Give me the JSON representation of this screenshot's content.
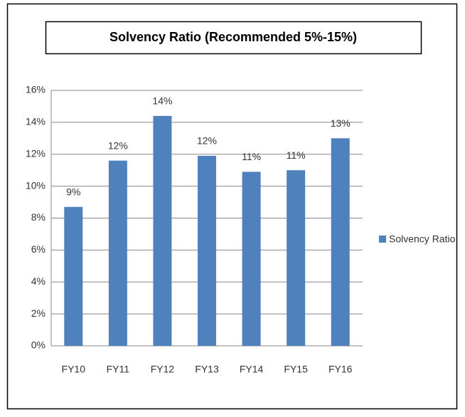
{
  "chart_data": {
    "type": "bar",
    "title": "Solvency Ratio (Recommended 5%-15%)",
    "categories": [
      "FY10",
      "FY11",
      "FY12",
      "FY13",
      "FY14",
      "FY15",
      "FY16"
    ],
    "series": [
      {
        "name": "Solvency Ratio",
        "color": "#4f81bd",
        "values": [
          8.7,
          11.6,
          14.4,
          11.9,
          10.9,
          11.0,
          13.0
        ],
        "value_labels": [
          "9%",
          "12%",
          "14%",
          "12%",
          "11%",
          "11%",
          "13%"
        ]
      }
    ],
    "ylim": [
      0,
      16
    ],
    "yticks": [
      {
        "value": 0,
        "label": "0%"
      },
      {
        "value": 2,
        "label": "2%"
      },
      {
        "value": 4,
        "label": "4%"
      },
      {
        "value": 6,
        "label": "6%"
      },
      {
        "value": 8,
        "label": "8%"
      },
      {
        "value": 10,
        "label": "10%"
      },
      {
        "value": 12,
        "label": "12%"
      },
      {
        "value": 14,
        "label": "14%"
      },
      {
        "value": 16,
        "label": "16%"
      }
    ],
    "grid": true,
    "legend": "right"
  }
}
